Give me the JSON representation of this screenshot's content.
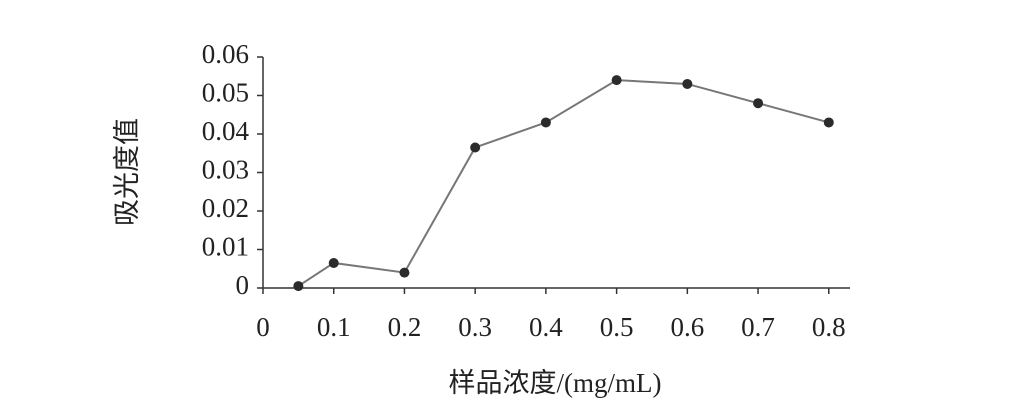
{
  "chart_data": {
    "type": "line",
    "x_label": "样品浓度/(mg/mL)",
    "y_label": "吸光度值",
    "series": [
      {
        "name": "吸光度值",
        "color": "#777777",
        "marker_color": "#2b2b2b",
        "x": [
          0.05,
          0.1,
          0.2,
          0.3,
          0.4,
          0.5,
          0.6,
          0.7,
          0.8
        ],
        "values": [
          0.0005,
          0.0065,
          0.004,
          0.0365,
          0.043,
          0.054,
          0.053,
          0.048,
          0.043
        ]
      }
    ],
    "xlim": [
      0,
      0.83
    ],
    "xticks": [
      0,
      0.1,
      0.2,
      0.3,
      0.4,
      0.5,
      0.6,
      0.7,
      0.8
    ],
    "ylim": [
      0,
      0.06
    ],
    "yticks": [
      0,
      0.01,
      0.02,
      0.03,
      0.04,
      0.05,
      0.06
    ],
    "grid": false
  }
}
